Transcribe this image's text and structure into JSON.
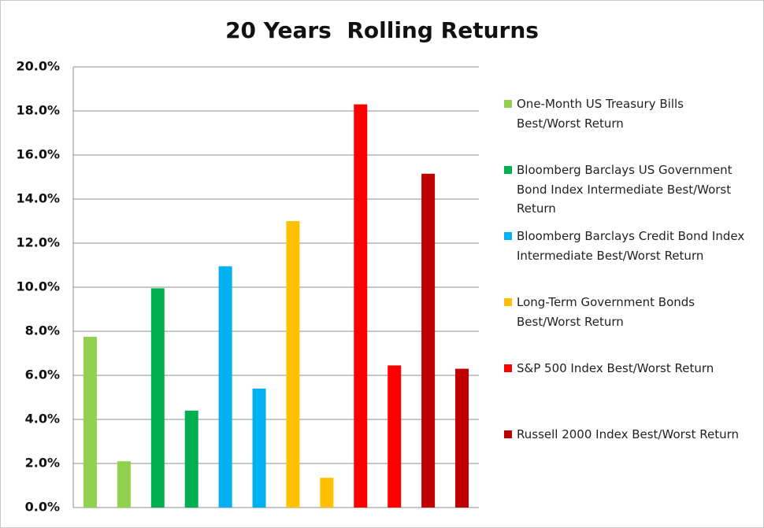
{
  "chart_data": {
    "type": "bar",
    "title": "20 Years  Rolling Returns",
    "series": [
      {
        "name": "One-Month US Treasury Bills Best/Worst Return",
        "color": "#92d050",
        "values": [
          7.75,
          2.1
        ]
      },
      {
        "name": "Bloomberg Barclays US Government Bond Index Intermediate Best/Worst Return",
        "color": "#00b050",
        "values": [
          9.95,
          4.4
        ]
      },
      {
        "name": "Bloomberg Barclays Credit Bond Index Intermediate Best/Worst Return",
        "color": "#00b0f0",
        "values": [
          10.95,
          5.4
        ]
      },
      {
        "name": "Long-Term Government Bonds Best/Worst Return",
        "color": "#ffc000",
        "values": [
          13.0,
          1.35
        ]
      },
      {
        "name": "S&P 500 Index Best/Worst Return",
        "color": "#ff0000",
        "values": [
          18.3,
          6.45
        ]
      },
      {
        "name": "Russell 2000 Index Best/Worst Return",
        "color": "#c00000",
        "values": [
          15.15,
          6.3
        ]
      }
    ],
    "ylim": [
      0,
      20
    ],
    "yticks": [
      {
        "value": 0,
        "label": "0.0%"
      },
      {
        "value": 2,
        "label": "2.0%"
      },
      {
        "value": 4,
        "label": "4.0%"
      },
      {
        "value": 6,
        "label": "6.0%"
      },
      {
        "value": 8,
        "label": "8.0%"
      },
      {
        "value": 10,
        "label": "10.0%"
      },
      {
        "value": 12,
        "label": "12.0%"
      },
      {
        "value": 14,
        "label": "14.0%"
      },
      {
        "value": 16,
        "label": "16.0%"
      },
      {
        "value": 18,
        "label": "18.0%"
      },
      {
        "value": 20,
        "label": "20.0%"
      }
    ],
    "grid": true,
    "legend": "right"
  }
}
